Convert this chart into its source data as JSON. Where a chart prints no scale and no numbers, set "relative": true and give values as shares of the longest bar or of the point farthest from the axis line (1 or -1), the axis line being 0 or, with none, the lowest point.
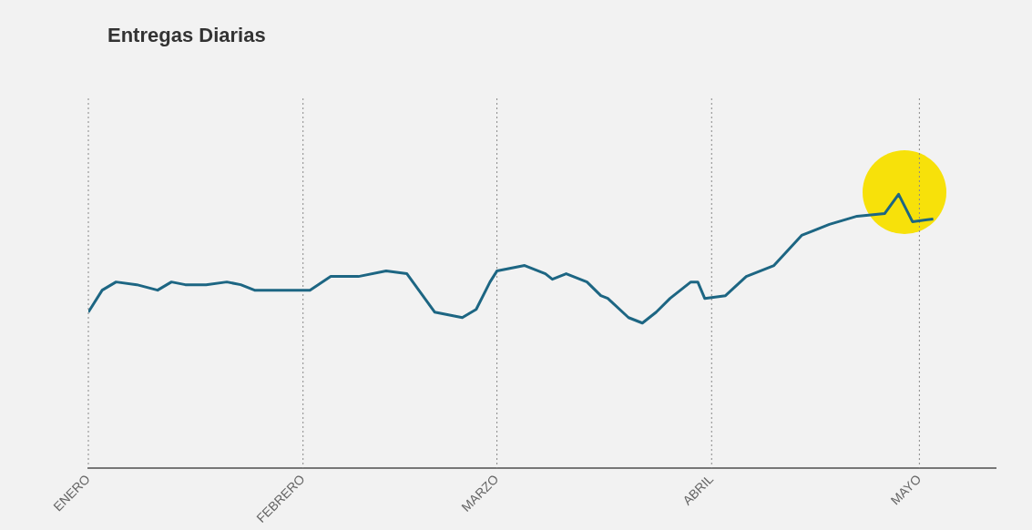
{
  "chart_data": {
    "type": "line",
    "title": "Entregas Diarias",
    "relative": true,
    "color": "#1d6683",
    "grid": "x",
    "line_style": "solid",
    "x": [
      "--01-01",
      "--01-03",
      "--01-05",
      "--01-08",
      "--01-11",
      "--01-13",
      "--01-15",
      "--01-18",
      "--01-21",
      "--01-23",
      "--01-25",
      "--01-29",
      "--02-02",
      "--02-05",
      "--02-09",
      "--02-13",
      "--02-16",
      "--02-20",
      "--02-22",
      "--02-24",
      "--02-26",
      "--02-28",
      "--03-01",
      "--03-03",
      "--03-05",
      "--03-08",
      "--03-09",
      "--03-11",
      "--03-14",
      "--03-16",
      "--03-17",
      "--03-20",
      "--03-22",
      "--03-24",
      "--03-26",
      "--03-29",
      "--03-30",
      "--03-31",
      "--04-03",
      "--04-06",
      "--04-10",
      "--04-14",
      "--04-18",
      "--04-22",
      "--04-26",
      "--04-28",
      "--04-30",
      "--05-03"
    ],
    "values": [
      0.57,
      0.65,
      0.68,
      0.67,
      0.65,
      0.68,
      0.67,
      0.67,
      0.68,
      0.67,
      0.65,
      0.65,
      0.65,
      0.7,
      0.7,
      0.72,
      0.71,
      0.57,
      0.56,
      0.55,
      0.58,
      0.68,
      0.72,
      0.73,
      0.74,
      0.71,
      0.69,
      0.71,
      0.68,
      0.63,
      0.62,
      0.55,
      0.53,
      0.57,
      0.62,
      0.68,
      0.68,
      0.62,
      0.63,
      0.7,
      0.74,
      0.85,
      0.89,
      0.92,
      0.93,
      1,
      0.9,
      0.91
    ],
    "xlim": [
      "--01-01",
      "--05-12"
    ],
    "xticks": [
      {
        "value": "--01-01",
        "label": "ENERO"
      },
      {
        "value": "--02-01",
        "label": "FEBRERO"
      },
      {
        "value": "--03-01",
        "label": "MARZO"
      },
      {
        "value": "--04-01",
        "label": "ABRIL"
      },
      {
        "value": "--05-01",
        "label": "MAYO"
      }
    ]
  }
}
